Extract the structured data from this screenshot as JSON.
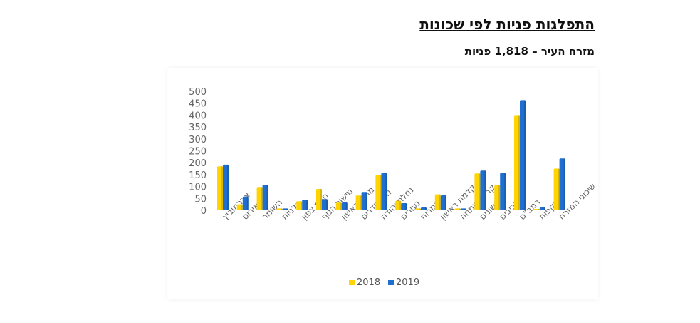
{
  "header": {
    "title": "התפלגות פניות לפי שכונות",
    "subtitle": "מזרח העיר – 1,818 פניות"
  },
  "chart_data": {
    "type": "bar",
    "title": "מזרח העיר – 1,818 פניות",
    "xlabel": "",
    "ylabel": "",
    "ylim": [
      0,
      500
    ],
    "yticks": [
      0,
      50,
      100,
      150,
      200,
      250,
      300,
      350,
      400,
      450,
      500
    ],
    "legend_position": "bottom",
    "categories": [
      "אברמוביץ",
      "האירוס",
      "השומר",
      "כלניות",
      "חבת צפון",
      "מישור הנוף",
      "מרום ראשון",
      "נווה הדרים",
      "נחלת יהודה",
      "נעורים",
      "צמרות",
      "קדמת ראשון",
      "קריית שמחה",
      "ראשונים",
      "רביבים",
      "רמב\"ם",
      "רקפות",
      "שיכוני המזרח"
    ],
    "series": [
      {
        "name": "2018",
        "color": "#FFD400",
        "values": [
          185,
          25,
          98,
          8,
          38,
          90,
          32,
          62,
          148,
          40,
          8,
          67,
          8,
          155,
          105,
          400,
          0,
          175
        ]
      },
      {
        "name": "2019",
        "color": "#1F6FD1",
        "values": [
          192,
          58,
          107,
          8,
          45,
          47,
          33,
          77,
          157,
          30,
          12,
          63,
          8,
          167,
          157,
          463,
          12,
          218
        ]
      }
    ]
  }
}
